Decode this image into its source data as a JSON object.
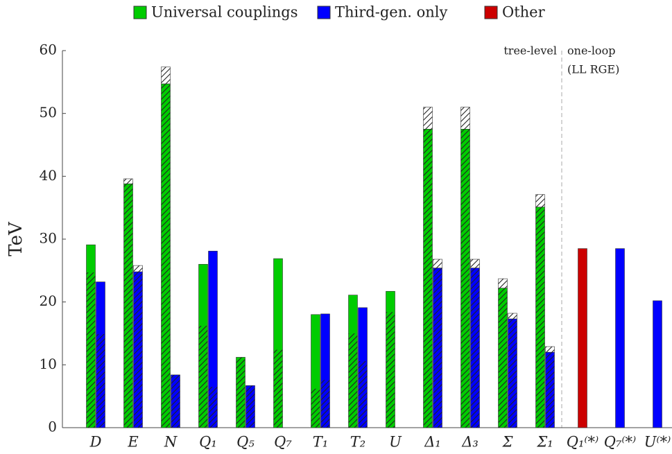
{
  "chart_data": {
    "type": "bar",
    "ylabel": "TeV",
    "categories": [
      "D",
      "E",
      "N",
      "Q₁",
      "Q₅",
      "Q₇",
      "T₁",
      "T₂",
      "U",
      "Δ₁",
      "Δ₃",
      "Σ",
      "Σ₁",
      "Q₁⁽*⁾",
      "Q₇⁽*⁾",
      "U⁽*⁾"
    ],
    "series": [
      {
        "name": "Universal couplings",
        "color": "#00cc00",
        "values": [
          29.1,
          38.8,
          54.7,
          26.0,
          11.2,
          26.9,
          18.0,
          21.1,
          21.7,
          47.5,
          47.5,
          22.2,
          35.1,
          null,
          null,
          null
        ],
        "hatched": [
          24.7,
          38.8,
          54.7,
          16.2,
          11.2,
          12.4,
          6.2,
          15.0,
          18.4,
          47.5,
          47.5,
          22.2,
          35.1,
          null,
          null,
          null
        ],
        "upper": [
          null,
          39.6,
          57.4,
          null,
          null,
          null,
          null,
          null,
          null,
          51.0,
          51.0,
          23.7,
          37.1,
          null,
          null,
          null
        ]
      },
      {
        "name": "Third-gen. only",
        "color": "#0000ff",
        "values": [
          23.2,
          24.8,
          8.4,
          28.1,
          6.7,
          null,
          18.1,
          19.1,
          null,
          25.4,
          25.4,
          17.3,
          12.0,
          null,
          28.5,
          20.2
        ],
        "hatched": [
          14.9,
          24.8,
          8.4,
          6.5,
          6.7,
          null,
          7.6,
          10.6,
          null,
          25.4,
          25.4,
          17.3,
          12.0,
          null,
          null,
          null
        ],
        "upper": [
          null,
          25.8,
          null,
          null,
          null,
          null,
          null,
          null,
          null,
          26.8,
          26.8,
          18.2,
          12.9,
          null,
          null,
          null
        ]
      },
      {
        "name": "Other",
        "color": "#cc0000",
        "values": [
          null,
          null,
          null,
          null,
          null,
          null,
          null,
          null,
          null,
          null,
          null,
          null,
          null,
          28.5,
          null,
          null
        ]
      }
    ],
    "annotations": [
      "tree-level",
      "one-loop",
      "(LL RGE)"
    ],
    "ylim": [
      0,
      60
    ],
    "yticks": [
      0,
      10,
      20,
      30,
      40,
      50,
      60
    ]
  }
}
